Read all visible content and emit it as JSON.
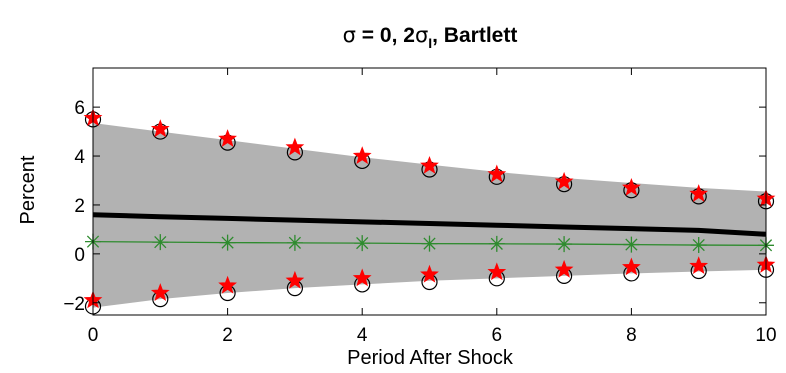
{
  "chart_data": {
    "type": "line",
    "title_parts": {
      "sigma1": "σ",
      "mid": " = 0, 2",
      "sigma2": "σ",
      "sub": "I",
      "end": ", Bartlett"
    },
    "xlabel": "Period After Shock",
    "ylabel": "Percent",
    "xlim": [
      0,
      10
    ],
    "ylim": [
      -2.5,
      7.6
    ],
    "x_ticks": [
      0,
      2,
      4,
      6,
      8,
      10
    ],
    "y_ticks": [
      -2,
      0,
      2,
      4,
      6
    ],
    "y_tick_labels": [
      "−2",
      "0",
      "2",
      "4",
      "6"
    ],
    "x": [
      0,
      1,
      2,
      3,
      4,
      5,
      6,
      7,
      8,
      9,
      10
    ],
    "band": {
      "upper": [
        5.35,
        5.0,
        4.65,
        4.3,
        3.95,
        3.65,
        3.35,
        3.1,
        2.9,
        2.7,
        2.55
      ],
      "lower": [
        -2.2,
        -1.85,
        -1.6,
        -1.4,
        -1.25,
        -1.1,
        -1.0,
        -0.9,
        -0.8,
        -0.72,
        -0.65
      ],
      "color": "#b2b2b2"
    },
    "series": [
      {
        "values": [
          1.6,
          1.52,
          1.45,
          1.38,
          1.31,
          1.24,
          1.17,
          1.1,
          1.03,
          0.96,
          0.8
        ],
        "color": "#000000",
        "marker": "none"
      },
      {
        "values": [
          0.5,
          0.48,
          0.46,
          0.45,
          0.44,
          0.42,
          0.41,
          0.4,
          0.38,
          0.36,
          0.35
        ],
        "color": "#2e8b2e",
        "marker": "asterisk"
      },
      {
        "values": [
          5.5,
          5.0,
          4.55,
          4.15,
          3.8,
          3.45,
          3.15,
          2.85,
          2.6,
          2.35,
          2.15
        ],
        "color": "#000000",
        "marker": "circle"
      },
      {
        "values": [
          -2.15,
          -1.85,
          -1.6,
          -1.4,
          -1.25,
          -1.15,
          -1.0,
          -0.9,
          -0.8,
          -0.7,
          -0.65
        ],
        "color": "#000000",
        "marker": "circle"
      },
      {
        "values": [
          5.55,
          5.1,
          4.7,
          4.35,
          4.0,
          3.6,
          3.25,
          2.95,
          2.7,
          2.45,
          2.25
        ],
        "color": "#ff0000",
        "marker": "star"
      },
      {
        "values": [
          -1.9,
          -1.6,
          -1.3,
          -1.1,
          -1.0,
          -0.85,
          -0.75,
          -0.65,
          -0.55,
          -0.5,
          -0.45
        ],
        "color": "#ff0000",
        "marker": "star"
      }
    ],
    "grid": false,
    "legend": "none"
  }
}
